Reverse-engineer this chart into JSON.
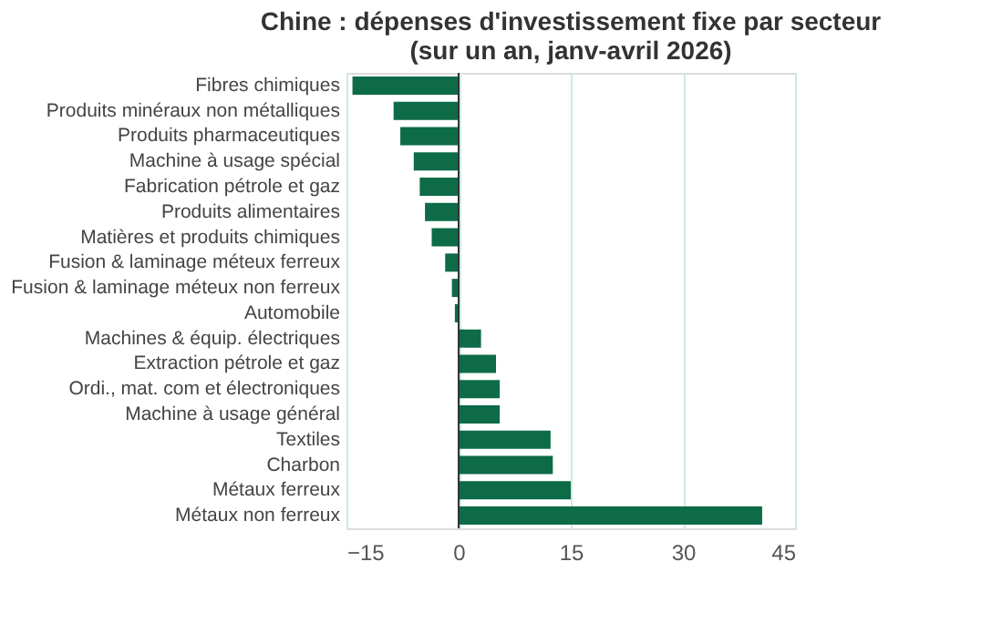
{
  "chart_data": {
    "type": "bar",
    "orientation": "horizontal",
    "title": [
      "Chine : dépenses d'investissement fixe par secteur",
      "(sur un an, janv-avril 2026)"
    ],
    "categories": [
      "Fibres chimiques",
      "Produits minéraux non métalliques",
      "Produits pharmaceutiques",
      "Machine à usage spécial",
      "Fabrication pétrole et gaz",
      "Produits alimentaires",
      "Matières et produits chimiques",
      "Fusion & laminage méteux ferreux",
      "Fusion & laminage méteux non ferreux",
      "Automobile",
      "Machines & équip. électriques",
      "Extraction pétrole et gaz",
      "Ordi., mat. com et électroniques",
      "Machine à usage général",
      "Textiles",
      "Charbon",
      "Métaux ferreux",
      "Métaux non ferreux"
    ],
    "values": [
      -14.2,
      -8.7,
      -7.8,
      -6.0,
      -5.2,
      -4.5,
      -3.6,
      -1.8,
      -0.9,
      -0.5,
      3.0,
      5.0,
      5.5,
      5.5,
      12.3,
      12.6,
      15.0,
      40.6
    ],
    "color": "#0e6b47",
    "xlim": [
      -15,
      45
    ],
    "xticks": [
      -15,
      0,
      15,
      30,
      45
    ],
    "grid": "x"
  }
}
